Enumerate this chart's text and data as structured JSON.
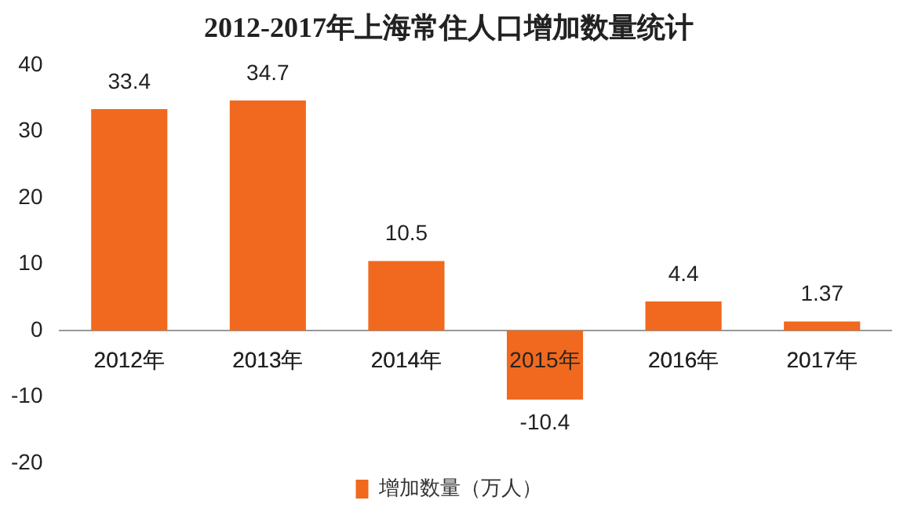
{
  "chart_data": {
    "type": "bar",
    "title": "2012-2017年上海常住人口增加数量统计",
    "categories": [
      "2012年",
      "2013年",
      "2014年",
      "2015年",
      "2016年",
      "2017年"
    ],
    "series": [
      {
        "name": "增加数量（万人）",
        "color": "#f0691e",
        "values": [
          33.4,
          34.7,
          10.5,
          -10.4,
          4.4,
          1.37
        ]
      }
    ],
    "ylim": [
      -20,
      40
    ],
    "yticks": [
      -20,
      -10,
      0,
      10,
      20,
      30,
      40
    ],
    "grid": false,
    "legend": "bottom",
    "data_labels": true
  }
}
